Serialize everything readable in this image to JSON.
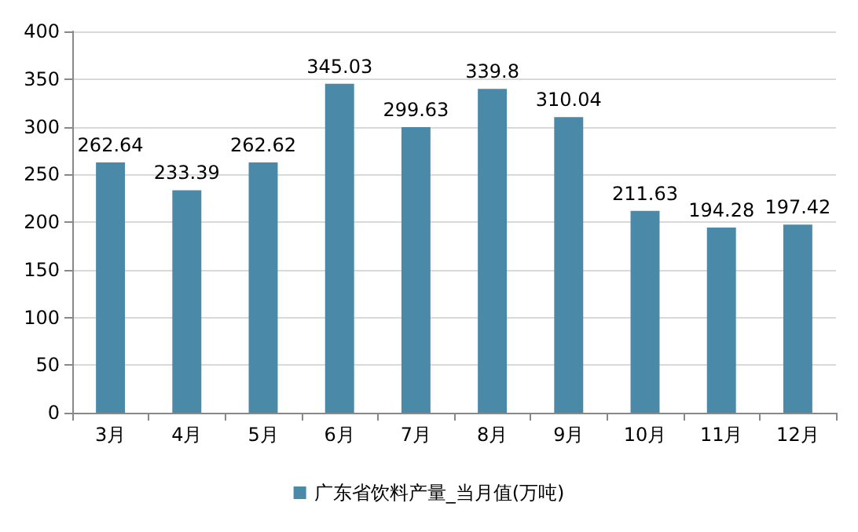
{
  "chart_data": {
    "type": "bar",
    "categories": [
      "3月",
      "4月",
      "5月",
      "6月",
      "7月",
      "8月",
      "9月",
      "10月",
      "11月",
      "12月"
    ],
    "series": [
      {
        "name": "广东省饮料产量_当月值(万吨)",
        "color": "#4a89a8",
        "values": [
          262.64,
          233.39,
          262.62,
          345.03,
          299.63,
          339.8,
          310.04,
          211.63,
          194.28,
          197.42
        ]
      }
    ],
    "ylim": [
      0,
      400
    ],
    "yticks": [
      0,
      50,
      100,
      150,
      200,
      250,
      300,
      350,
      400
    ],
    "grid": "y",
    "legend": "bottom",
    "data_labels": true
  }
}
